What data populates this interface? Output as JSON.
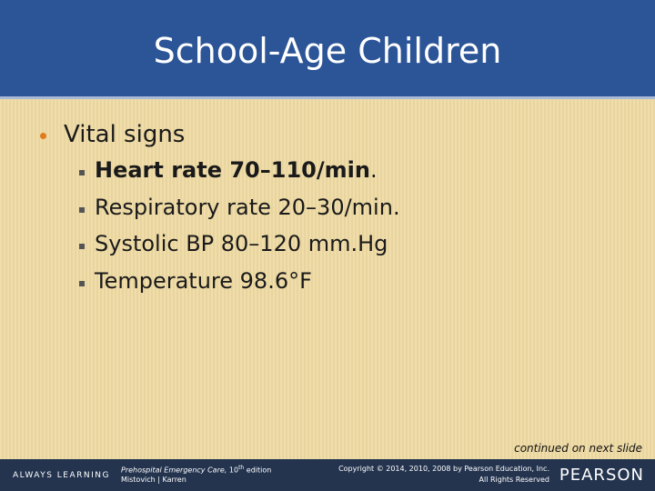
{
  "header": {
    "title": "School-Age Children"
  },
  "content": {
    "bullet": "Vital signs",
    "sub_bullets": [
      {
        "bold": "Heart rate 70–110/min",
        "text": "."
      },
      {
        "text": "Respiratory rate 20–30/min."
      },
      {
        "text": "Systolic BP 80–120 mm.Hg"
      },
      {
        "text": "Temperature 98.6°F"
      }
    ],
    "note": "continued on next slide"
  },
  "footer": {
    "tagline": "ALWAYS LEARNING",
    "book": "Prehospital Emergency Care,",
    "edition_number": "10",
    "edition_suffix": "th",
    "edition_word": "edition",
    "authors": "Mistovich | Karren",
    "copyright": "Copyright © 2014, 2010, 2008 by Pearson Education, Inc.",
    "rights": "All Rights Reserved",
    "brand": "PEARSON"
  }
}
